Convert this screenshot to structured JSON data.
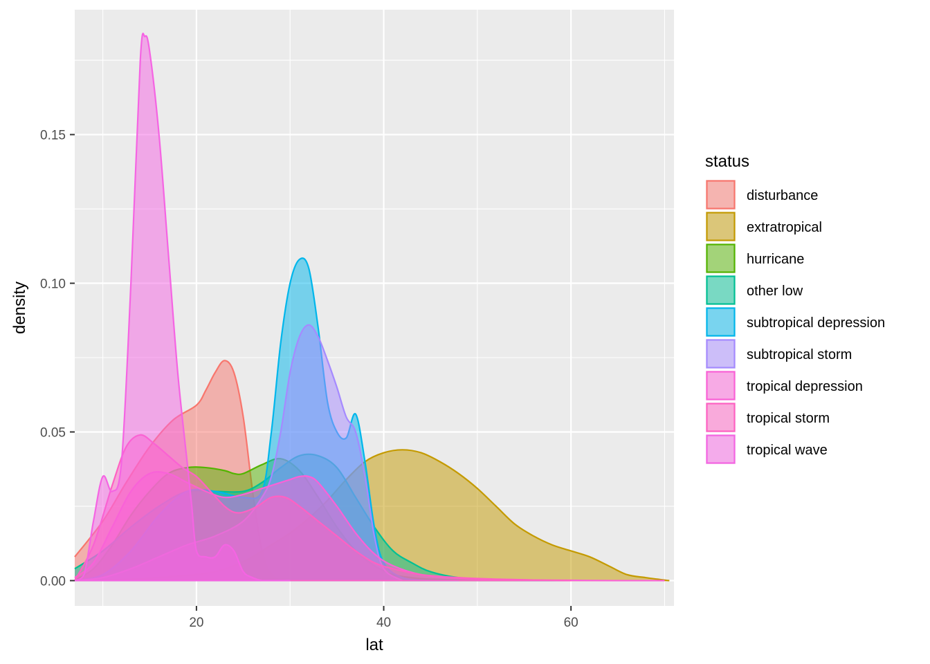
{
  "chart_data": {
    "type": "area",
    "xlabel": "lat",
    "ylabel": "density",
    "xlim": [
      7,
      71
    ],
    "ylim": [
      -0.0085,
      0.192
    ],
    "x_ticks": [
      20,
      40,
      60
    ],
    "y_ticks": [
      0.0,
      0.05,
      0.1,
      0.15
    ],
    "x_tick_labels": [
      "20",
      "40",
      "60"
    ],
    "y_tick_labels": [
      "0.00",
      "0.05",
      "0.10",
      "0.15"
    ],
    "legend_title": "status",
    "legend_position": "right",
    "grid": true,
    "series": [
      {
        "name": "disturbance",
        "color": "#F8766D",
        "x": [
          7,
          10,
          12.5,
          15,
          17.5,
          20,
          21,
          22,
          23,
          24,
          25,
          26,
          27,
          28,
          29.5
        ],
        "y": [
          0.008,
          0.02,
          0.033,
          0.045,
          0.054,
          0.059,
          0.064,
          0.07,
          0.074,
          0.07,
          0.055,
          0.03,
          0.01,
          0.002,
          0
        ]
      },
      {
        "name": "extratropical",
        "color": "#C49A00",
        "x": [
          7,
          10,
          13,
          16,
          18,
          20,
          22,
          24,
          26,
          28,
          30,
          32,
          34,
          36,
          38,
          40,
          42,
          44,
          46,
          48,
          50,
          52,
          54,
          56,
          58,
          60,
          62,
          64,
          66,
          68,
          70.5
        ],
        "y": [
          0,
          0,
          0.0005,
          0.001,
          0.0015,
          0.002,
          0.003,
          0.005,
          0.008,
          0.012,
          0.016,
          0.021,
          0.027,
          0.034,
          0.04,
          0.043,
          0.044,
          0.043,
          0.04,
          0.036,
          0.031,
          0.025,
          0.019,
          0.015,
          0.012,
          0.01,
          0.008,
          0.005,
          0.002,
          0.001,
          0
        ]
      },
      {
        "name": "hurricane",
        "color": "#53B400",
        "x": [
          7,
          9,
          11,
          13,
          15,
          17,
          19,
          21,
          23,
          24,
          25,
          27,
          29,
          31,
          33,
          35,
          37,
          39,
          41,
          43,
          45,
          48,
          51,
          55,
          60
        ],
        "y": [
          0,
          0.004,
          0.012,
          0.022,
          0.03,
          0.036,
          0.038,
          0.038,
          0.037,
          0.036,
          0.036,
          0.039,
          0.041,
          0.037,
          0.028,
          0.018,
          0.01,
          0.005,
          0.002,
          0.001,
          0.0005,
          0.0002,
          0,
          0,
          0
        ]
      },
      {
        "name": "other low",
        "color": "#00C094",
        "x": [
          7,
          10,
          13,
          16,
          19,
          22,
          25,
          27,
          29,
          31,
          33,
          35,
          37,
          39,
          41,
          43,
          45,
          48,
          52,
          56,
          60
        ],
        "y": [
          0.004,
          0.01,
          0.018,
          0.025,
          0.03,
          0.03,
          0.03,
          0.033,
          0.038,
          0.042,
          0.042,
          0.038,
          0.028,
          0.018,
          0.01,
          0.006,
          0.003,
          0.001,
          0.0003,
          0,
          0
        ]
      },
      {
        "name": "subtropical depression",
        "color": "#00B6EB",
        "x": [
          7,
          10,
          13,
          16,
          19,
          22,
          25,
          27,
          28,
          29,
          30,
          31,
          32,
          33,
          34,
          35,
          36,
          37,
          38,
          39,
          40,
          42,
          45,
          48
        ],
        "y": [
          0,
          0.002,
          0.01,
          0.022,
          0.03,
          0.03,
          0.028,
          0.03,
          0.05,
          0.08,
          0.1,
          0.108,
          0.105,
          0.085,
          0.06,
          0.05,
          0.048,
          0.056,
          0.04,
          0.018,
          0.006,
          0.001,
          0,
          0
        ]
      },
      {
        "name": "subtropical storm",
        "color": "#A58AFF",
        "x": [
          7,
          10,
          13,
          16,
          19,
          22,
          25,
          27,
          28,
          29,
          30,
          31,
          32,
          33,
          34,
          35,
          36,
          37,
          38,
          39,
          40,
          42
        ],
        "y": [
          0,
          0.001,
          0.004,
          0.008,
          0.012,
          0.015,
          0.02,
          0.028,
          0.035,
          0.05,
          0.07,
          0.082,
          0.086,
          0.082,
          0.074,
          0.065,
          0.055,
          0.05,
          0.035,
          0.015,
          0.004,
          0
        ]
      },
      {
        "name": "tropical depression",
        "color": "#FB61D7",
        "x": [
          7,
          9,
          11,
          13,
          15,
          17,
          19,
          21,
          23,
          25,
          27,
          29,
          30,
          31,
          32,
          33,
          35,
          37,
          39,
          41,
          44,
          47,
          50,
          55,
          60,
          65,
          70
        ],
        "y": [
          0.001,
          0.006,
          0.018,
          0.03,
          0.036,
          0.036,
          0.033,
          0.03,
          0.028,
          0.029,
          0.031,
          0.033,
          0.034,
          0.035,
          0.035,
          0.033,
          0.025,
          0.016,
          0.009,
          0.005,
          0.002,
          0.001,
          0.0005,
          0.0002,
          0.0001,
          0,
          0
        ]
      },
      {
        "name": "tropical storm",
        "color": "#FF61C3",
        "x": [
          7,
          9,
          11,
          12.5,
          14,
          15.5,
          17,
          18.5,
          20,
          21.5,
          23,
          24,
          25,
          26.5,
          28,
          29.5,
          31,
          33,
          35,
          37,
          39,
          41,
          44,
          48,
          52,
          56,
          60
        ],
        "y": [
          0,
          0.012,
          0.032,
          0.045,
          0.049,
          0.046,
          0.042,
          0.038,
          0.035,
          0.03,
          0.025,
          0.023,
          0.023,
          0.025,
          0.028,
          0.028,
          0.025,
          0.02,
          0.015,
          0.01,
          0.006,
          0.004,
          0.002,
          0.001,
          0.0005,
          0.0002,
          0
        ]
      },
      {
        "name": "tropical wave",
        "color": "#F564E3",
        "x": [
          7,
          8,
          9,
          10,
          11,
          12,
          13,
          14,
          14.5,
          15,
          16,
          17,
          18,
          19,
          19.5,
          20,
          21,
          22,
          23,
          24,
          25,
          26,
          27,
          28,
          30
        ],
        "y": [
          0,
          0.002,
          0.02,
          0.035,
          0.03,
          0.04,
          0.1,
          0.175,
          0.183,
          0.178,
          0.15,
          0.11,
          0.07,
          0.04,
          0.025,
          0.01,
          0.008,
          0.008,
          0.012,
          0.01,
          0.003,
          0.001,
          0,
          0,
          0
        ]
      }
    ]
  }
}
